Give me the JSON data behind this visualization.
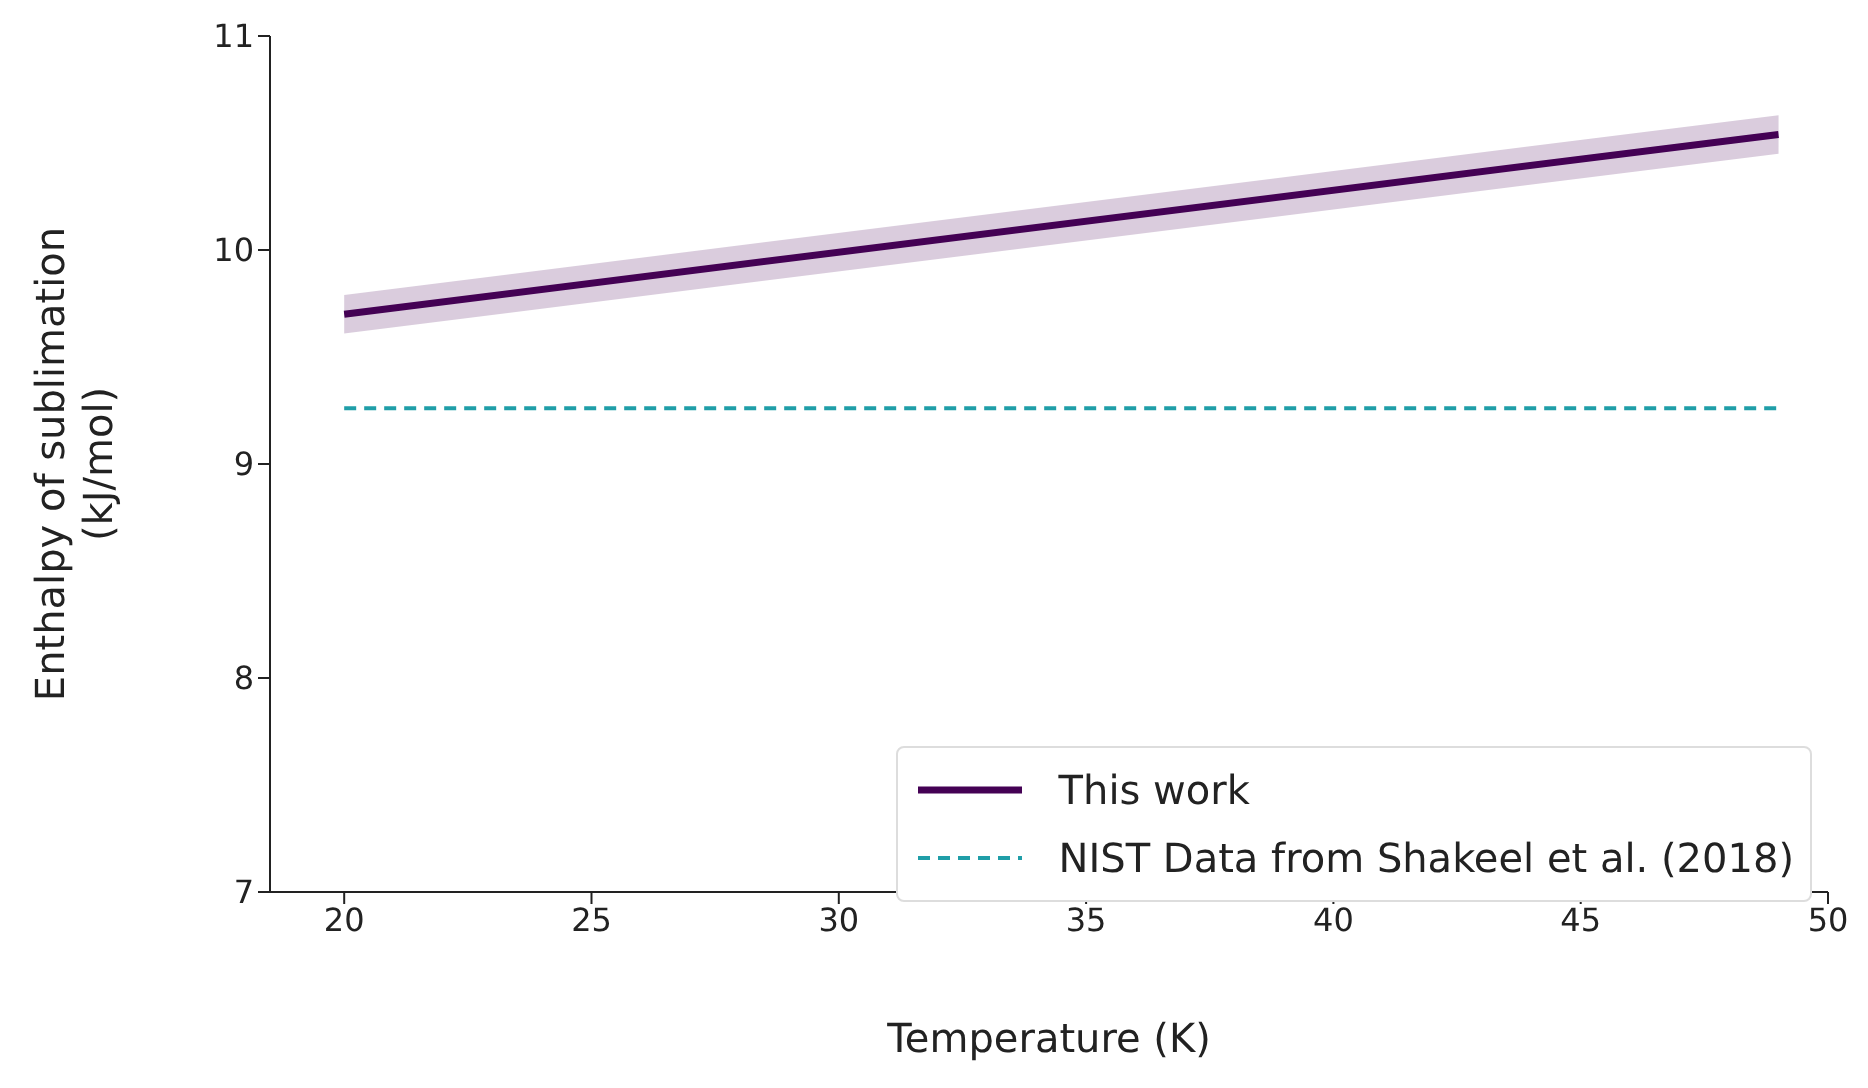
{
  "chart_data": {
    "type": "line",
    "xlabel": "Temperature (K)",
    "ylabel": "Enthalpy of sublimation\n(kJ/mol)",
    "x": [
      20,
      49
    ],
    "series": [
      {
        "name": "This work",
        "color": "#440154",
        "values": [
          9.7,
          10.54
        ],
        "lower": [
          9.61,
          10.45
        ],
        "upper": [
          9.79,
          10.63
        ],
        "line_style": "solid"
      },
      {
        "name": "NIST Data from Shakeel et al. (2018)",
        "color": "#1f9ea8",
        "values": [
          9.26,
          9.26
        ],
        "line_style": "dashed"
      }
    ],
    "xlim": [
      18.5,
      50
    ],
    "xticks": [
      20,
      25,
      30,
      35,
      40,
      45,
      50
    ],
    "ylim": [
      7,
      11
    ],
    "yticks": [
      7,
      8,
      9,
      10,
      11
    ],
    "grid": false,
    "legend": "bottom right",
    "marker": "none"
  }
}
